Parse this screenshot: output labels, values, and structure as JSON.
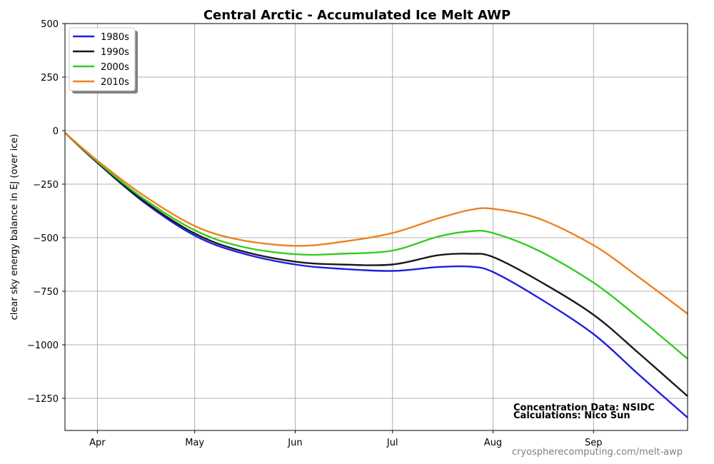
{
  "chart_data": {
    "type": "line",
    "title": "Central Arctic - Accumulated Ice Melt AWP",
    "xlabel": "",
    "ylabel": "clear sky energy balance in  EJ (over ice)",
    "x_unit": "date",
    "xlim": [
      "Mar 22",
      "Sep 30"
    ],
    "ylim": [
      -1400,
      500
    ],
    "yticks": [
      500,
      250,
      0,
      -250,
      -500,
      -750,
      -1000,
      -1250
    ],
    "xticks": [
      "Apr",
      "May",
      "Jun",
      "Jul",
      "Aug",
      "Sep"
    ],
    "grid": true,
    "legend_position": "top-left",
    "x": [
      "Mar 22",
      "Apr 1",
      "Apr 15",
      "May 1",
      "May 15",
      "Jun 1",
      "Jun 15",
      "Jul 1",
      "Jul 15",
      "Jul 25",
      "Aug 1",
      "Aug 15",
      "Sep 1",
      "Sep 15",
      "Sep 30"
    ],
    "series": [
      {
        "name": "1980s",
        "color": "#1f1fe0",
        "values": [
          -10,
          -150,
          -330,
          -490,
          -570,
          -625,
          -645,
          -655,
          -637,
          -635,
          -660,
          -780,
          -950,
          -1140,
          -1340
        ]
      },
      {
        "name": "1990s",
        "color": "#1a1a1a",
        "values": [
          -10,
          -150,
          -325,
          -480,
          -560,
          -612,
          -625,
          -625,
          -582,
          -575,
          -590,
          -700,
          -860,
          -1040,
          -1240
        ]
      },
      {
        "name": "2000s",
        "color": "#33cc22",
        "values": [
          -10,
          -145,
          -315,
          -465,
          -540,
          -577,
          -575,
          -560,
          -495,
          -470,
          -478,
          -560,
          -710,
          -875,
          -1065
        ]
      },
      {
        "name": "2010s",
        "color": "#f08020",
        "values": [
          -10,
          -140,
          -300,
          -445,
          -510,
          -538,
          -520,
          -478,
          -410,
          -370,
          -365,
          -410,
          -535,
          -685,
          -855
        ]
      }
    ]
  },
  "credits": {
    "line1": "Concentration Data: NSIDC",
    "line2": "Calculations: Nico Sun"
  },
  "source_url": "cryospherecomputing.com/melt-awp"
}
